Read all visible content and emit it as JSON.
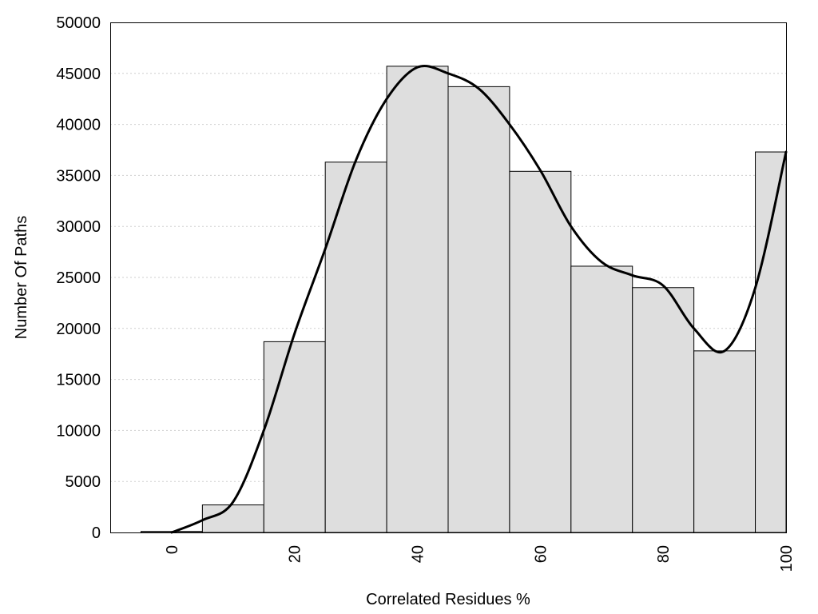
{
  "chart_data": {
    "type": "bar",
    "title": "",
    "xlabel": "Correlated Residues %",
    "ylabel": "Number Of Paths",
    "xlim": [
      -10,
      100
    ],
    "ylim": [
      0,
      50000
    ],
    "grid": "horizontal dotted",
    "x_ticks": [
      0,
      20,
      40,
      60,
      80,
      100
    ],
    "y_ticks": [
      0,
      5000,
      10000,
      15000,
      20000,
      25000,
      30000,
      35000,
      40000,
      45000,
      50000
    ],
    "bin_width": 10,
    "x": [
      0,
      10,
      20,
      30,
      40,
      50,
      60,
      70,
      80,
      90,
      100
    ],
    "values": [
      100,
      2700,
      18700,
      36300,
      45700,
      43700,
      35400,
      26100,
      24000,
      17800,
      37300
    ],
    "density_curve": {
      "x": [
        0,
        5,
        10,
        15,
        20,
        25,
        30,
        35,
        40,
        45,
        50,
        55,
        60,
        65,
        70,
        75,
        80,
        85,
        90,
        95,
        100
      ],
      "y": [
        0,
        1200,
        3000,
        10000,
        19500,
        27800,
        36500,
        42500,
        45600,
        45000,
        43500,
        40000,
        35500,
        30000,
        26500,
        25200,
        24200,
        20000,
        17800,
        24000,
        37300
      ]
    },
    "bar_color": "#dedede",
    "curve_color": "#000000"
  }
}
